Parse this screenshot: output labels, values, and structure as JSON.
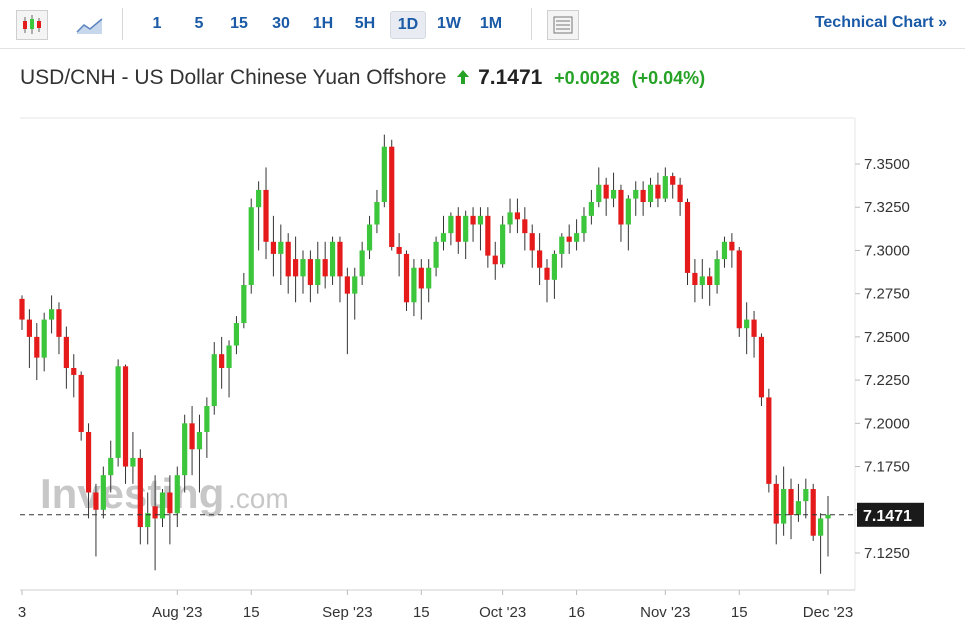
{
  "header": {
    "intervals": [
      "1",
      "5",
      "15",
      "30",
      "1H",
      "5H",
      "1D",
      "1W",
      "1M"
    ],
    "selected_interval": "1D",
    "link": "Technical Chart »",
    "title": "USD/CNH - US Dollar Chinese Yuan Offshore",
    "price": "7.1471",
    "change": "+0.0028",
    "change_pct": "(+0.04%)"
  },
  "chart_data": {
    "type": "candlestick",
    "watermark_brand": "Investing",
    "watermark_suffix": ".com",
    "up_color": "#3cc63c",
    "down_color": "#e51b1b",
    "ylim": [
      7.1036,
      7.3766
    ],
    "yticks": [
      {
        "value": 7.125,
        "label": "7.1250"
      },
      {
        "value": 7.15,
        "label": "7.1500"
      },
      {
        "value": 7.175,
        "label": "7.1750"
      },
      {
        "value": 7.2,
        "label": "7.2000"
      },
      {
        "value": 7.225,
        "label": "7.2250"
      },
      {
        "value": 7.25,
        "label": "7.2500"
      },
      {
        "value": 7.275,
        "label": "7.2750"
      },
      {
        "value": 7.3,
        "label": "7.3000"
      },
      {
        "value": 7.325,
        "label": "7.3250"
      },
      {
        "value": 7.35,
        "label": "7.3500"
      }
    ],
    "last_price": 7.1471,
    "categories": [
      "3",
      null,
      null,
      null,
      null,
      null,
      null,
      null,
      null,
      null,
      null,
      null,
      null,
      null,
      null,
      null,
      null,
      null,
      null,
      null,
      null,
      "Aug '23",
      null,
      null,
      null,
      null,
      null,
      null,
      null,
      null,
      null,
      "15",
      null,
      null,
      null,
      null,
      null,
      null,
      null,
      null,
      null,
      null,
      null,
      null,
      "Sep '23",
      null,
      null,
      null,
      null,
      null,
      null,
      null,
      null,
      null,
      "15",
      null,
      null,
      null,
      null,
      null,
      null,
      null,
      null,
      null,
      null,
      "Oct '23",
      null,
      null,
      null,
      null,
      null,
      null,
      null,
      null,
      null,
      "16",
      null,
      null,
      null,
      null,
      null,
      null,
      null,
      null,
      null,
      null,
      null,
      "Nov '23",
      null,
      null,
      null,
      null,
      null,
      null,
      null,
      null,
      null,
      "15",
      null,
      null,
      null,
      null,
      null,
      null,
      null,
      null,
      null,
      null,
      null,
      "Dec '23"
    ],
    "open": [
      7.272,
      7.26,
      7.25,
      7.238,
      7.26,
      7.266,
      7.25,
      7.232,
      7.228,
      7.195,
      7.16,
      7.15,
      7.17,
      7.18,
      7.233,
      7.175,
      7.18,
      7.14,
      7.152,
      7.145,
      7.16,
      7.148,
      7.17,
      7.2,
      7.185,
      7.195,
      7.21,
      7.24,
      7.232,
      7.245,
      7.258,
      7.28,
      7.325,
      7.335,
      7.305,
      7.298,
      7.305,
      7.295,
      7.285,
      7.295,
      7.28,
      7.295,
      7.285,
      7.305,
      7.285,
      7.275,
      7.285,
      7.3,
      7.315,
      7.328,
      7.36,
      7.302,
      7.298,
      7.27,
      7.29,
      7.278,
      7.29,
      7.305,
      7.31,
      7.32,
      7.305,
      7.32,
      7.315,
      7.32,
      7.297,
      7.292,
      7.315,
      7.322,
      7.318,
      7.31,
      7.3,
      7.29,
      7.283,
      7.298,
      7.308,
      7.305,
      7.31,
      7.32,
      7.328,
      7.338,
      7.33,
      7.335,
      7.315,
      7.33,
      7.335,
      7.328,
      7.338,
      7.33,
      7.343,
      7.338,
      7.328,
      7.287,
      7.28,
      7.285,
      7.28,
      7.295,
      7.305,
      7.3,
      7.255,
      7.26,
      7.25,
      7.215,
      7.165,
      7.142,
      7.162,
      7.147,
      7.155,
      7.162,
      7.135,
      7.145
    ],
    "high": [
      7.274,
      7.266,
      7.258,
      7.264,
      7.274,
      7.27,
      7.256,
      7.24,
      7.23,
      7.2,
      7.165,
      7.175,
      7.19,
      7.237,
      7.234,
      7.195,
      7.185,
      7.16,
      7.17,
      7.162,
      7.17,
      7.175,
      7.205,
      7.21,
      7.205,
      7.215,
      7.247,
      7.25,
      7.248,
      7.262,
      7.287,
      7.33,
      7.34,
      7.348,
      7.32,
      7.315,
      7.31,
      7.308,
      7.3,
      7.3,
      7.305,
      7.305,
      7.308,
      7.308,
      7.29,
      7.29,
      7.305,
      7.32,
      7.335,
      7.367,
      7.364,
      7.31,
      7.3,
      7.295,
      7.295,
      7.295,
      7.308,
      7.32,
      7.322,
      7.325,
      7.323,
      7.325,
      7.325,
      7.325,
      7.305,
      7.32,
      7.33,
      7.33,
      7.325,
      7.315,
      7.31,
      7.295,
      7.3,
      7.31,
      7.315,
      7.318,
      7.325,
      7.335,
      7.348,
      7.342,
      7.345,
      7.338,
      7.332,
      7.34,
      7.34,
      7.342,
      7.345,
      7.348,
      7.345,
      7.342,
      7.33,
      7.295,
      7.295,
      7.29,
      7.3,
      7.308,
      7.31,
      7.302,
      7.27,
      7.265,
      7.252,
      7.22,
      7.17,
      7.175,
      7.168,
      7.165,
      7.168,
      7.165,
      7.148,
      7.158
    ],
    "low": [
      7.254,
      7.232,
      7.225,
      7.23,
      7.252,
      7.24,
      7.22,
      7.215,
      7.19,
      7.145,
      7.123,
      7.145,
      7.16,
      7.175,
      7.165,
      7.165,
      7.13,
      7.13,
      7.115,
      7.14,
      7.13,
      7.14,
      7.16,
      7.17,
      7.16,
      7.18,
      7.205,
      7.22,
      7.215,
      7.24,
      7.255,
      7.275,
      7.3,
      7.295,
      7.285,
      7.28,
      7.275,
      7.27,
      7.275,
      7.27,
      7.275,
      7.278,
      7.28,
      7.27,
      7.24,
      7.26,
      7.28,
      7.295,
      7.31,
      7.325,
      7.3,
      7.285,
      7.265,
      7.262,
      7.26,
      7.27,
      7.285,
      7.3,
      7.303,
      7.298,
      7.295,
      7.305,
      7.3,
      7.29,
      7.283,
      7.29,
      7.31,
      7.31,
      7.3,
      7.29,
      7.28,
      7.27,
      7.272,
      7.29,
      7.298,
      7.3,
      7.305,
      7.315,
      7.325,
      7.32,
      7.325,
      7.305,
      7.3,
      7.32,
      7.32,
      7.325,
      7.325,
      7.328,
      7.33,
      7.32,
      7.28,
      7.27,
      7.272,
      7.268,
      7.275,
      7.29,
      7.29,
      7.25,
      7.24,
      7.238,
      7.21,
      7.16,
      7.13,
      7.135,
      7.133,
      7.143,
      7.145,
      7.132,
      7.113,
      7.123
    ],
    "close": [
      7.26,
      7.25,
      7.238,
      7.26,
      7.266,
      7.25,
      7.232,
      7.228,
      7.195,
      7.16,
      7.15,
      7.17,
      7.18,
      7.233,
      7.175,
      7.18,
      7.14,
      7.148,
      7.145,
      7.16,
      7.148,
      7.17,
      7.2,
      7.185,
      7.195,
      7.21,
      7.24,
      7.232,
      7.245,
      7.258,
      7.28,
      7.325,
      7.335,
      7.305,
      7.298,
      7.305,
      7.285,
      7.285,
      7.295,
      7.28,
      7.295,
      7.285,
      7.305,
      7.285,
      7.275,
      7.285,
      7.3,
      7.315,
      7.328,
      7.36,
      7.302,
      7.298,
      7.27,
      7.29,
      7.278,
      7.29,
      7.305,
      7.31,
      7.32,
      7.305,
      7.32,
      7.315,
      7.32,
      7.297,
      7.292,
      7.315,
      7.322,
      7.318,
      7.31,
      7.3,
      7.29,
      7.283,
      7.298,
      7.308,
      7.305,
      7.31,
      7.32,
      7.328,
      7.338,
      7.33,
      7.335,
      7.315,
      7.33,
      7.335,
      7.328,
      7.338,
      7.33,
      7.343,
      7.338,
      7.328,
      7.287,
      7.28,
      7.285,
      7.28,
      7.295,
      7.305,
      7.3,
      7.255,
      7.26,
      7.25,
      7.215,
      7.165,
      7.142,
      7.162,
      7.147,
      7.155,
      7.162,
      7.135,
      7.145,
      7.1471
    ]
  }
}
